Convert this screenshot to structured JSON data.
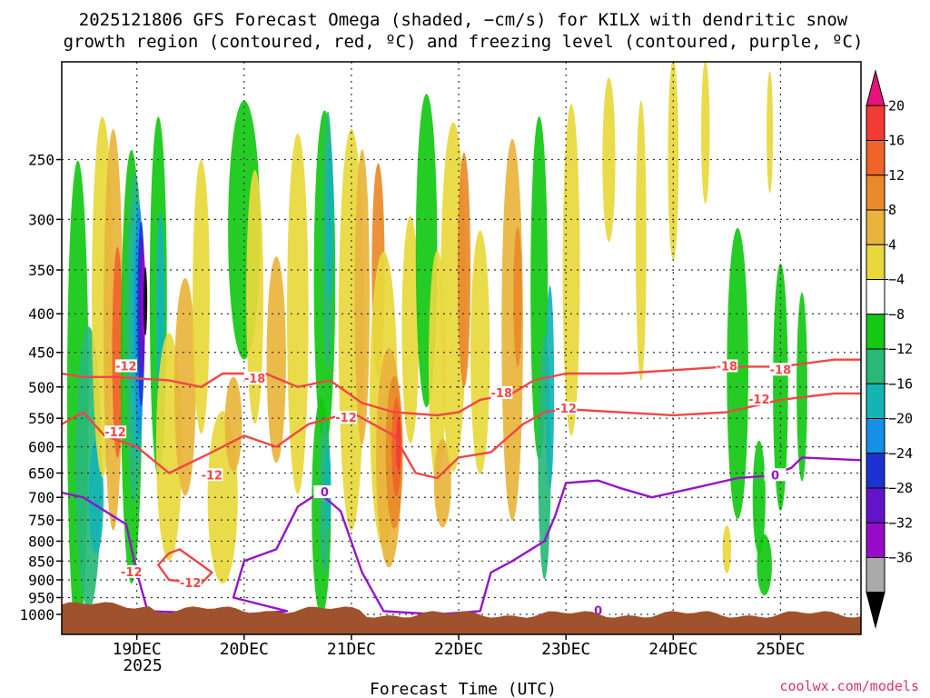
{
  "chart_data": {
    "type": "heatmap",
    "title_line1": "2025121806 GFS Forecast Omega (shaded, −cm/s) for KILX with dendritic snow",
    "title_line2": "growth region (contoured, red, ºC) and freezing level (contoured, purple, ºC)",
    "xlabel": "Forecast Time (UTC)",
    "year_label": "2025",
    "credit": "coolwx.com/models",
    "x_ticks": [
      "19DEC",
      "20DEC",
      "21DEC",
      "22DEC",
      "23DEC",
      "24DEC",
      "25DEC"
    ],
    "x_range_days": [
      18.3,
      25.75
    ],
    "y_ticks": [
      "250",
      "300",
      "350",
      "400",
      "450",
      "500",
      "550",
      "600",
      "650",
      "700",
      "750",
      "800",
      "850",
      "900",
      "950",
      "1000"
    ],
    "y_range_hpa": [
      1050,
      200
    ],
    "colorbar_labels": [
      "20",
      "16",
      "12",
      "8",
      "4",
      "−4",
      "−8",
      "−12",
      "−16",
      "−20",
      "−24",
      "−28",
      "−32",
      "−36"
    ],
    "colorbar_colors": [
      "#e8127a",
      "#f03c32",
      "#f0642a",
      "#e88a2a",
      "#e8b43c",
      "#e8d83c",
      "#ffffff",
      "#14c814",
      "#28b878",
      "#14b4b4",
      "#1490e6",
      "#1e32d2",
      "#6414c8",
      "#960ac8",
      "#aaaaaa",
      "#000000"
    ],
    "shading_colors": {
      "y4": "#e8d83c",
      "y8": "#e8b43c",
      "o12": "#e88a2a",
      "r16": "#f0642a",
      "r20": "#f03c32",
      "g4": "#14c814",
      "g8": "#28b878",
      "c12": "#14b4b4",
      "b16": "#1490e6",
      "b20": "#1e32d2",
      "p24": "#6414c8",
      "p28": "#960ac8",
      "k32": "#000000"
    },
    "ground_color": "#a0522d",
    "contour_colors": {
      "dendritic": "#f04646",
      "freezing": "#9614c8"
    },
    "contour_labels": [
      "-18",
      "-12",
      "-12",
      "-12",
      "-12",
      "-18",
      "-18",
      "-12",
      "-12",
      "-18",
      "-12",
      "0",
      "0",
      "0",
      "-12"
    ],
    "contours": {
      "m18": [
        [
          18.3,
          480
        ],
        [
          18.5,
          485
        ],
        [
          18.8,
          485
        ],
        [
          19.3,
          490
        ],
        [
          19.6,
          500
        ],
        [
          19.8,
          480
        ],
        [
          20.2,
          480
        ],
        [
          20.5,
          500
        ],
        [
          20.8,
          490
        ],
        [
          21.1,
          525
        ],
        [
          21.4,
          540
        ],
        [
          21.8,
          545
        ],
        [
          22.0,
          540
        ],
        [
          22.2,
          520
        ],
        [
          22.5,
          510
        ],
        [
          22.7,
          490
        ],
        [
          23.0,
          480
        ],
        [
          23.5,
          480
        ],
        [
          24.0,
          475
        ],
        [
          24.5,
          470
        ],
        [
          25.0,
          470
        ],
        [
          25.5,
          460
        ],
        [
          25.75,
          460
        ]
      ],
      "m12a": [
        [
          18.3,
          560
        ],
        [
          18.5,
          540
        ],
        [
          18.7,
          580
        ],
        [
          19.0,
          600
        ],
        [
          19.3,
          650
        ],
        [
          19.7,
          610
        ],
        [
          20.0,
          580
        ],
        [
          20.3,
          600
        ],
        [
          20.6,
          560
        ],
        [
          21.0,
          540
        ],
        [
          21.4,
          580
        ],
        [
          21.6,
          650
        ],
        [
          21.8,
          660
        ],
        [
          22.0,
          620
        ],
        [
          22.3,
          610
        ],
        [
          22.6,
          560
        ],
        [
          22.8,
          540
        ],
        [
          23.0,
          535
        ],
        [
          23.5,
          540
        ],
        [
          24.0,
          545
        ],
        [
          24.5,
          540
        ],
        [
          25.0,
          520
        ],
        [
          25.5,
          510
        ],
        [
          25.75,
          510
        ]
      ],
      "m12b": [
        [
          19.3,
          830
        ],
        [
          19.2,
          860
        ],
        [
          19.3,
          900
        ],
        [
          19.6,
          910
        ],
        [
          19.7,
          880
        ],
        [
          19.4,
          820
        ],
        [
          19.3,
          830
        ]
      ],
      "zero": [
        [
          18.3,
          690
        ],
        [
          18.5,
          700
        ],
        [
          18.9,
          760
        ],
        [
          19.0,
          880
        ],
        [
          19.1,
          990
        ],
        [
          20.0,
          1000
        ],
        [
          20.4,
          990
        ],
        [
          19.9,
          950
        ],
        [
          20.0,
          850
        ],
        [
          20.3,
          820
        ],
        [
          20.5,
          720
        ],
        [
          20.7,
          690
        ],
        [
          20.9,
          730
        ],
        [
          21.1,
          880
        ],
        [
          21.3,
          990
        ],
        [
          21.8,
          1000
        ],
        [
          22.2,
          990
        ],
        [
          22.3,
          880
        ],
        [
          22.5,
          850
        ],
        [
          22.8,
          800
        ],
        [
          22.9,
          740
        ],
        [
          23.0,
          670
        ],
        [
          23.3,
          665
        ],
        [
          23.5,
          680
        ],
        [
          23.8,
          700
        ],
        [
          24.2,
          680
        ],
        [
          24.6,
          660
        ],
        [
          24.9,
          655
        ],
        [
          25.1,
          640
        ],
        [
          25.2,
          620
        ],
        [
          25.75,
          625
        ]
      ]
    }
  }
}
